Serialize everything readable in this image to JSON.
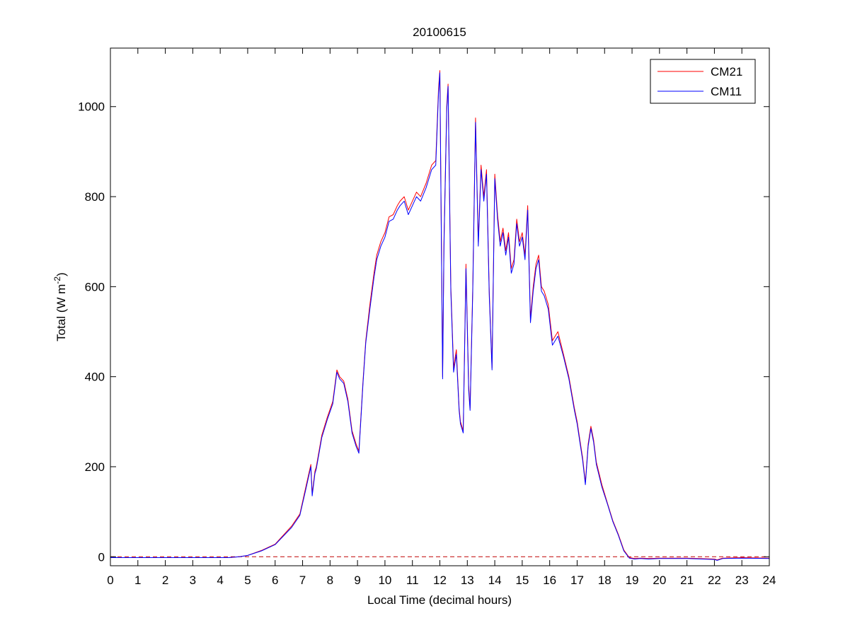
{
  "chart_data": {
    "type": "line",
    "title": "20100615",
    "xlabel": "Local Time (decimal hours)",
    "ylabel": "Total (W m^-2)",
    "ylabel_main": "Total (W m",
    "ylabel_exp": "-2",
    "ylabel_close": ")",
    "xlim": [
      0,
      24
    ],
    "ylim": [
      -20,
      1130
    ],
    "xticks": [
      0,
      1,
      2,
      3,
      4,
      5,
      6,
      7,
      8,
      9,
      10,
      11,
      12,
      13,
      14,
      15,
      16,
      17,
      18,
      19,
      20,
      21,
      22,
      23,
      24
    ],
    "yticks": [
      0,
      200,
      400,
      600,
      800,
      1000
    ],
    "grid": false,
    "legend_position": "top-right",
    "reference_line": {
      "y": 0,
      "style": "dashed",
      "color": "#c00000"
    },
    "series": [
      {
        "name": "CM21",
        "color": "#ff0000",
        "x": [
          0,
          4.3,
          4.7,
          5.0,
          5.5,
          6.0,
          6.3,
          6.6,
          6.9,
          7.1,
          7.3,
          7.35,
          7.45,
          7.5,
          7.7,
          7.9,
          8.1,
          8.25,
          8.35,
          8.5,
          8.65,
          8.8,
          8.95,
          9.05,
          9.2,
          9.3,
          9.45,
          9.6,
          9.7,
          9.85,
          10.0,
          10.15,
          10.3,
          10.45,
          10.55,
          10.7,
          10.85,
          11.0,
          11.15,
          11.3,
          11.5,
          11.7,
          11.85,
          11.95,
          12.0,
          12.1,
          12.15,
          12.25,
          12.3,
          12.4,
          12.5,
          12.6,
          12.7,
          12.75,
          12.85,
          12.95,
          13.05,
          13.1,
          13.2,
          13.3,
          13.4,
          13.5,
          13.6,
          13.7,
          13.8,
          13.9,
          14.0,
          14.1,
          14.2,
          14.3,
          14.4,
          14.5,
          14.6,
          14.7,
          14.8,
          14.9,
          15.0,
          15.1,
          15.2,
          15.3,
          15.4,
          15.5,
          15.6,
          15.7,
          15.8,
          15.95,
          16.1,
          16.2,
          16.3,
          16.5,
          16.7,
          16.9,
          17.0,
          17.1,
          17.2,
          17.3,
          17.4,
          17.5,
          17.6,
          17.7,
          17.9,
          18.1,
          18.3,
          18.5,
          18.7,
          18.9,
          19.1,
          19.3,
          19.6,
          20.0,
          21.0,
          22.0,
          22.1,
          22.3,
          23.0,
          24.0
        ],
        "values": [
          -2,
          -2,
          0,
          3,
          14,
          28,
          48,
          68,
          95,
          150,
          205,
          140,
          190,
          200,
          270,
          310,
          345,
          415,
          400,
          390,
          350,
          280,
          250,
          235,
          390,
          480,
          560,
          630,
          670,
          700,
          720,
          755,
          760,
          780,
          790,
          800,
          770,
          790,
          810,
          800,
          830,
          870,
          880,
          1040,
          1080,
          400,
          700,
          1000,
          1050,
          600,
          420,
          460,
          330,
          300,
          280,
          650,
          380,
          330,
          600,
          975,
          700,
          870,
          800,
          860,
          590,
          420,
          850,
          760,
          700,
          730,
          680,
          720,
          640,
          660,
          750,
          700,
          720,
          670,
          780,
          530,
          600,
          650,
          670,
          600,
          590,
          560,
          480,
          490,
          500,
          450,
          400,
          330,
          300,
          260,
          220,
          165,
          250,
          290,
          260,
          210,
          160,
          120,
          80,
          50,
          15,
          -2,
          -4,
          -3,
          -4,
          -3,
          -3,
          -5,
          -7,
          -3,
          -2,
          -3
        ]
      },
      {
        "name": "CM11",
        "color": "#0000ff",
        "x": [
          0,
          4.3,
          4.7,
          5.0,
          5.5,
          6.0,
          6.3,
          6.6,
          6.9,
          7.1,
          7.3,
          7.35,
          7.45,
          7.5,
          7.7,
          7.9,
          8.1,
          8.25,
          8.35,
          8.5,
          8.65,
          8.8,
          8.95,
          9.05,
          9.2,
          9.3,
          9.45,
          9.6,
          9.7,
          9.85,
          10.0,
          10.15,
          10.3,
          10.45,
          10.55,
          10.7,
          10.85,
          11.0,
          11.15,
          11.3,
          11.5,
          11.7,
          11.85,
          11.95,
          12.0,
          12.1,
          12.15,
          12.25,
          12.3,
          12.4,
          12.5,
          12.6,
          12.7,
          12.75,
          12.85,
          12.95,
          13.05,
          13.1,
          13.2,
          13.3,
          13.4,
          13.5,
          13.6,
          13.7,
          13.8,
          13.9,
          14.0,
          14.1,
          14.2,
          14.3,
          14.4,
          14.5,
          14.6,
          14.7,
          14.8,
          14.9,
          15.0,
          15.1,
          15.2,
          15.3,
          15.4,
          15.5,
          15.6,
          15.7,
          15.8,
          15.95,
          16.1,
          16.2,
          16.3,
          16.5,
          16.7,
          16.9,
          17.0,
          17.1,
          17.2,
          17.3,
          17.4,
          17.5,
          17.6,
          17.7,
          17.9,
          18.1,
          18.3,
          18.5,
          18.7,
          18.9,
          19.1,
          19.3,
          19.6,
          20.0,
          21.0,
          22.0,
          22.1,
          22.3,
          23.0,
          24.0
        ],
        "values": [
          -2,
          -2,
          0,
          3,
          13,
          27,
          46,
          65,
          92,
          145,
          200,
          135,
          185,
          195,
          265,
          305,
          340,
          410,
          395,
          385,
          345,
          275,
          245,
          230,
          385,
          475,
          550,
          620,
          660,
          690,
          710,
          745,
          750,
          770,
          780,
          790,
          760,
          780,
          800,
          790,
          820,
          860,
          870,
          1030,
          1075,
          395,
          690,
          990,
          1045,
          590,
          410,
          450,
          325,
          295,
          275,
          640,
          370,
          325,
          590,
          965,
          690,
          860,
          790,
          850,
          580,
          415,
          840,
          750,
          690,
          720,
          670,
          710,
          630,
          650,
          740,
          690,
          710,
          660,
          770,
          520,
          590,
          640,
          660,
          590,
          580,
          550,
          470,
          480,
          490,
          445,
          395,
          325,
          295,
          255,
          215,
          160,
          245,
          285,
          255,
          205,
          155,
          118,
          78,
          48,
          13,
          -3,
          -5,
          -4,
          -5,
          -4,
          -4,
          -6,
          -8,
          -4,
          -3,
          -4
        ]
      }
    ]
  }
}
